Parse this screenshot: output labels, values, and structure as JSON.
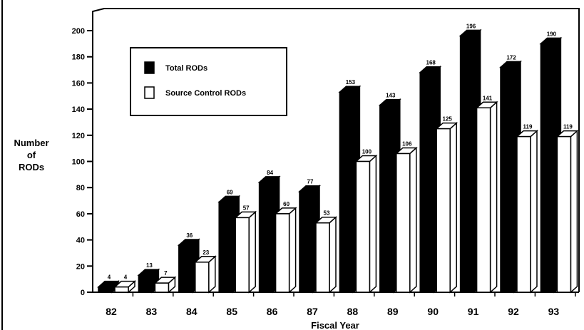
{
  "chart_data": {
    "type": "bar",
    "title": "",
    "xlabel": "Fiscal Year",
    "ylabel": [
      "Number",
      "of",
      "RODs"
    ],
    "ylim": [
      0,
      200
    ],
    "yticks": [
      0,
      20,
      40,
      60,
      80,
      100,
      120,
      140,
      160,
      180,
      200
    ],
    "categories": [
      "82",
      "83",
      "84",
      "85",
      "86",
      "87",
      "88",
      "89",
      "90",
      "91",
      "92",
      "93"
    ],
    "series": [
      {
        "name": "Total RODs",
        "color": "#000000",
        "values": [
          4,
          13,
          36,
          69,
          84,
          77,
          153,
          143,
          168,
          196,
          172,
          190
        ],
        "labels": [
          "4",
          "13",
          "36",
          "69",
          "84",
          "77",
          "153",
          "143",
          "168",
          "196",
          "172",
          "190"
        ]
      },
      {
        "name": "Source Control RODs",
        "color": "#ffffff",
        "values": [
          4,
          7,
          23,
          57,
          60,
          53,
          100,
          106,
          125,
          141,
          119,
          119
        ],
        "labels": [
          "4",
          "7",
          "23",
          "57",
          "60",
          "53",
          "100",
          "106",
          "125",
          "141",
          "119",
          "119"
        ]
      }
    ],
    "grid": false,
    "legend_position": "top-left"
  }
}
